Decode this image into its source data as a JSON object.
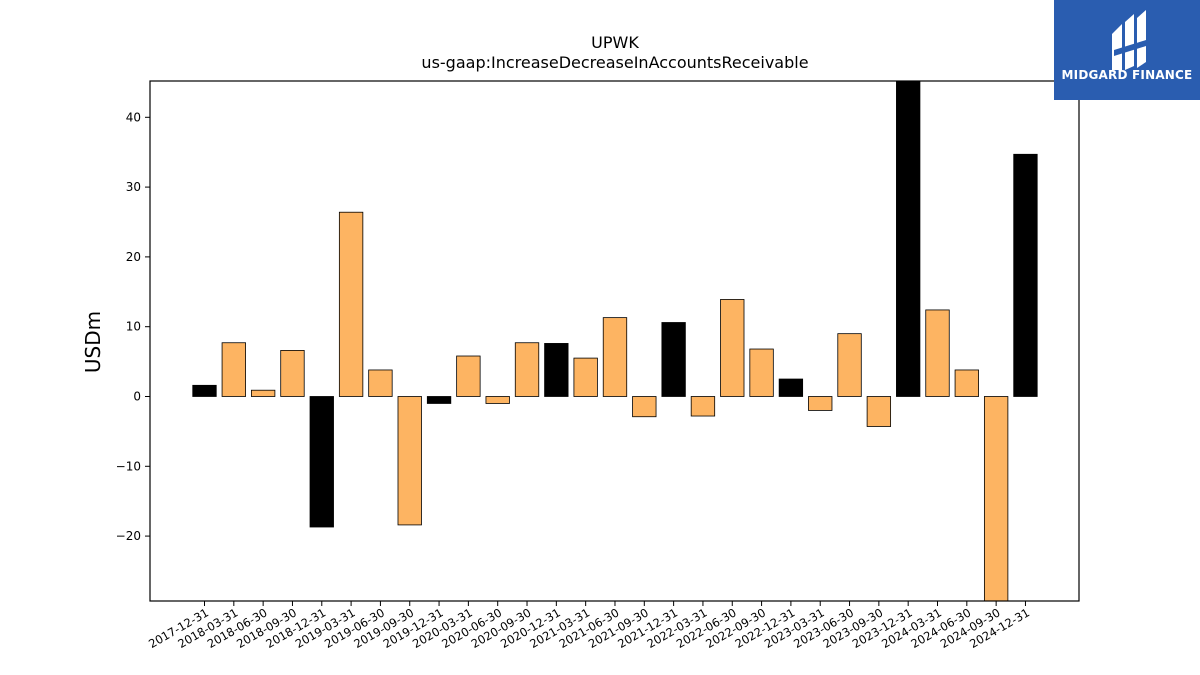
{
  "logo": {
    "text": "MIDGARD FINANCE"
  },
  "chart_data": {
    "type": "bar",
    "title": "UPWK",
    "subtitle": "us-gaap:IncreaseDecreaseInAccountsReceivable",
    "xlabel": "",
    "ylabel": "USDm",
    "ylim": [
      -29.3,
      45.2
    ],
    "yticks": [
      -20,
      -10,
      0,
      10,
      20,
      30,
      40
    ],
    "categories": [
      "2017-12-31",
      "2018-03-31",
      "2018-06-30",
      "2018-09-30",
      "2018-12-31",
      "2019-03-31",
      "2019-06-30",
      "2019-09-30",
      "2019-12-31",
      "2020-03-31",
      "2020-06-30",
      "2020-09-30",
      "2020-12-31",
      "2021-03-31",
      "2021-06-30",
      "2021-09-30",
      "2021-12-31",
      "2022-03-31",
      "2022-06-30",
      "2022-09-30",
      "2022-12-31",
      "2023-03-31",
      "2023-06-30",
      "2023-09-30",
      "2023-12-31",
      "2024-03-31",
      "2024-06-30",
      "2024-09-30",
      "2024-12-31"
    ],
    "values": [
      1.6,
      7.7,
      0.9,
      6.6,
      -18.7,
      26.4,
      3.8,
      -18.4,
      -1.0,
      5.8,
      -1.0,
      7.7,
      7.6,
      5.5,
      11.3,
      -2.9,
      10.6,
      -2.8,
      13.9,
      6.8,
      2.5,
      -2.0,
      9.0,
      -4.3,
      45.2,
      12.4,
      3.8,
      -29.3,
      34.7
    ],
    "quarter_end_flags": [
      true,
      false,
      false,
      false,
      true,
      false,
      false,
      false,
      true,
      false,
      false,
      false,
      true,
      false,
      false,
      false,
      true,
      false,
      false,
      false,
      true,
      false,
      false,
      false,
      true,
      false,
      false,
      false,
      true
    ],
    "colors": {
      "year_end": "#000000",
      "quarter": "#fdb462",
      "edge": "#000000"
    },
    "grid": false
  }
}
